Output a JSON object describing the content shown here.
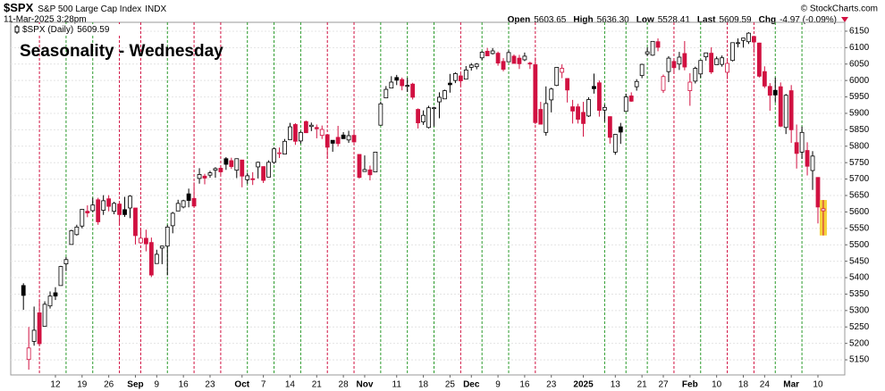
{
  "header": {
    "symbol": "$SPX",
    "name": "S&P 500 Large Cap Index",
    "exchange": "INDX",
    "date": "11-Mar-2025 3:28pm",
    "copyright": "© StockCharts.com",
    "quote": [
      {
        "label": "Open",
        "value": "5603.65"
      },
      {
        "label": "High",
        "value": "5636.30"
      },
      {
        "label": "Low",
        "value": "5528.41"
      },
      {
        "label": "Last",
        "value": "5609.59"
      },
      {
        "label": "Chg",
        "value": "-4.97 (-0.09%)"
      }
    ]
  },
  "chart_data": {
    "type": "candlestick",
    "title": "Seasonality - Wednesday",
    "categories": [
      null,
      null,
      null,
      null,
      null,
      null,
      "12",
      null,
      null,
      null,
      null,
      "19",
      null,
      null,
      null,
      null,
      "26",
      null,
      null,
      null,
      null,
      "Sep",
      null,
      null,
      null,
      "9",
      null,
      null,
      null,
      null,
      "16",
      null,
      null,
      null,
      null,
      "23",
      null,
      null,
      null,
      null,
      null,
      "Oct",
      null,
      null,
      null,
      "7",
      null,
      null,
      null,
      null,
      "14",
      null,
      null,
      null,
      null,
      "21",
      null,
      null,
      null,
      null,
      "28",
      null,
      null,
      null,
      "Nov",
      null,
      null,
      null,
      null,
      null,
      "11",
      null,
      null,
      null,
      null,
      "18",
      null,
      null,
      null,
      null,
      "25",
      null,
      null,
      null,
      "Dec",
      null,
      null,
      null,
      null,
      "9",
      null,
      null,
      null,
      null,
      "16",
      null,
      null,
      null,
      null,
      "23",
      null,
      null,
      null,
      null,
      null,
      "2025",
      null,
      null,
      null,
      null,
      null,
      "13",
      null,
      null,
      null,
      null,
      "21",
      null,
      null,
      null,
      "27",
      null,
      null,
      null,
      null,
      "Feb",
      null,
      null,
      null,
      null,
      "10",
      null,
      null,
      null,
      null,
      "18",
      null,
      null,
      null,
      "24",
      null,
      null,
      null,
      null,
      "Mar",
      null,
      null,
      null,
      null,
      "10",
      null
    ],
    "series": [
      {
        "name": "$SPX (Daily)",
        "last_label": "5609.59",
        "up_color": "#000000",
        "down_color": "#d11141",
        "open": [
          5376,
          5151,
          5206,
          5293,
          5252,
          5314,
          5354,
          5376,
          5442,
          5501,
          5531,
          5557,
          5602,
          5604,
          5637,
          5605,
          5640,
          5602,
          5624,
          5607,
          5612,
          5612,
          5506,
          5520,
          5507,
          5443,
          5490,
          5496,
          5558,
          5603,
          5615,
          5655,
          5641,
          5702,
          5709,
          5712,
          5727,
          5733,
          5762,
          5756,
          5727,
          5758,
          5698,
          5701,
          5737,
          5738,
          5706,
          5751,
          5778,
          5776,
          5820,
          5866,
          5816,
          5875,
          5860,
          5857,
          5833,
          5835,
          5818,
          5827,
          5834,
          5819,
          5833,
          5775,
          5723,
          5728,
          5722,
          5864,
          5947,
          5977,
          6009,
          6003,
          5985,
          5989,
          5912,
          5874,
          5857,
          5917,
          5935,
          5944,
          5992,
          6000,
          6014,
          6004,
          6040,
          6042,
          6069,
          6089,
          6082,
          6083,
          6058,
          6057,
          6074,
          6068,
          6063,
          6053,
          6048,
          5912,
          5842,
          5941,
          5985,
          6025,
          6006,
          5920,
          5920,
          5903,
          5892,
          5982,
          5993,
          5910,
          5890,
          5782,
          5859,
          5906,
          5953,
          5981,
          6015,
          6081,
          6077,
          6118,
          5970,
          6027,
          6058,
          6050,
          6082,
          5969,
          5998,
          6020,
          6072,
          6083,
          6048,
          6049,
          6025,
          6061,
          6115,
          6122,
          6118,
          6134,
          6114,
          6027,
          5982,
          5970,
          5981,
          5857,
          5969,
          5811,
          5782,
          5787,
          5726,
          5705,
          5603.65
        ],
        "high": [
          5383,
          5250,
          5312,
          5330,
          5328,
          5358,
          5371,
          5436,
          5463,
          5546,
          5561,
          5608,
          5620,
          5643,
          5643,
          5651,
          5651,
          5631,
          5628,
          5646,
          5651,
          5612,
          5552,
          5546,
          5522,
          5485,
          5497,
          5561,
          5600,
          5637,
          5637,
          5671,
          5690,
          5733,
          5716,
          5725,
          5736,
          5741,
          5767,
          5765,
          5763,
          5758,
          5719,
          5721,
          5753,
          5739,
          5757,
          5796,
          5796,
          5822,
          5871,
          5870,
          5846,
          5878,
          5872,
          5866,
          5863,
          5835,
          5818,
          5862,
          5843,
          5847,
          5850,
          5775,
          5772,
          5741,
          5783,
          5936,
          5983,
          6013,
          6017,
          6009,
          6008,
          5993,
          5915,
          5909,
          5923,
          5920,
          5964,
          5972,
          6020,
          6025,
          6021,
          6044,
          6053,
          6053,
          6089,
          6099,
          6099,
          6088,
          6068,
          6092,
          6079,
          6078,
          6085,
          6057,
          6070,
          5935,
          5982,
          5978,
          6041,
          6049,
          6007,
          5941,
          5929,
          5935,
          5949,
          6021,
          6000,
          5927,
          5891,
          5837,
          5871,
          5960,
          5964,
          6004,
          6051,
          6101,
          6119,
          6128,
          6018,
          6074,
          6063,
          6087,
          6120,
          6022,
          6042,
          6062,
          6084,
          6101,
          6073,
          6076,
          6064,
          6115,
          6128,
          6130,
          6147,
          6134,
          6115,
          6043,
          5992,
          6009,
          5994,
          5959,
          5986,
          5866,
          5860,
          5812,
          5785,
          5705,
          5636.3
        ],
        "low": [
          5302,
          5120,
          5193,
          5195,
          5252,
          5306,
          5332,
          5376,
          5420,
          5501,
          5528,
          5550,
          5584,
          5600,
          5561,
          5591,
          5602,
          5593,
          5561,
          5585,
          5581,
          5501,
          5504,
          5480,
          5402,
          5443,
          5441,
          5407,
          5535,
          5603,
          5611,
          5614,
          5615,
          5686,
          5684,
          5704,
          5704,
          5714,
          5728,
          5731,
          5703,
          5675,
          5686,
          5682,
          5702,
          5688,
          5706,
          5746,
          5764,
          5776,
          5820,
          5804,
          5808,
          5840,
          5846,
          5824,
          5822,
          5762,
          5783,
          5799,
          5822,
          5810,
          5811,
          5702,
          5723,
          5696,
          5722,
          5864,
          5947,
          5977,
          5986,
          5970,
          5965,
          5942,
          5854,
          5865,
          5854,
          5860,
          5885,
          5944,
          5963,
          5992,
          5984,
          6004,
          6030,
          6034,
          6062,
          6075,
          6079,
          6045,
          6028,
          6057,
          6051,
          6035,
          6059,
          6035,
          5867,
          5866,
          5832,
          5903,
          5983,
          6007,
          5933,
          5869,
          5869,
          5829,
          5889,
          5960,
          5890,
          5874,
          5808,
          5774,
          5807,
          5906,
          5935,
          5969,
          6007,
          6074,
          6075,
          6089,
          5962,
          5995,
          6020,
          6032,
          6031,
          5923,
          5991,
          6008,
          6060,
          6020,
          6048,
          6042,
          6004,
          6058,
          6101,
          6100,
          6111,
          6084,
          6009,
          5977,
          5908,
          5933,
          5858,
          5837,
          5810,
          5732,
          5761,
          5711,
          5667,
          5565,
          5528.41
        ],
        "close": [
          5346,
          5186,
          5240,
          5199,
          5319,
          5344,
          5344,
          5434,
          5455,
          5543,
          5554,
          5608,
          5597,
          5621,
          5570,
          5634,
          5617,
          5626,
          5592,
          5592,
          5648,
          5528,
          5520,
          5503,
          5408,
          5471,
          5496,
          5554,
          5596,
          5626,
          5634,
          5635,
          5618,
          5714,
          5703,
          5719,
          5732,
          5722,
          5745,
          5738,
          5762,
          5709,
          5710,
          5699,
          5751,
          5696,
          5751,
          5792,
          5780,
          5815,
          5859,
          5815,
          5842,
          5841,
          5864,
          5853,
          5851,
          5797,
          5809,
          5808,
          5823,
          5832,
          5813,
          5705,
          5729,
          5713,
          5782,
          5929,
          5973,
          5995,
          6001,
          5984,
          5985,
          5949,
          5871,
          5894,
          5917,
          5917,
          5949,
          5969,
          5987,
          6021,
          5999,
          6032,
          6047,
          6050,
          6086,
          6075,
          6090,
          6053,
          6034,
          6085,
          6052,
          6051,
          6074,
          6050,
          5872,
          5867,
          5930,
          5974,
          6040,
          6037,
          5971,
          5907,
          5882,
          5869,
          5942,
          5975,
          5909,
          5918,
          5827,
          5836,
          5843,
          5950,
          5937,
          5997,
          6049,
          6087,
          6119,
          6101,
          6012,
          6068,
          6039,
          6071,
          6041,
          5995,
          6037,
          6061,
          6084,
          6026,
          6066,
          6069,
          6052,
          6115,
          6115,
          6129,
          6144,
          6117,
          6013,
          5983,
          5955,
          5956,
          5861,
          5955,
          5850,
          5778,
          5842,
          5739,
          5770,
          5615,
          5609.59
        ]
      }
    ],
    "ylim": [
      5104,
      6177
    ],
    "yticks": [
      5150,
      5200,
      5250,
      5300,
      5350,
      5400,
      5450,
      5500,
      5550,
      5600,
      5650,
      5700,
      5750,
      5800,
      5850,
      5900,
      5950,
      6000,
      6050,
      6100,
      6150
    ],
    "grid": true,
    "wednesday_up_color": "#2a9a2a",
    "wednesday_down_color": "#d11141",
    "title_color": "#1010d8"
  }
}
